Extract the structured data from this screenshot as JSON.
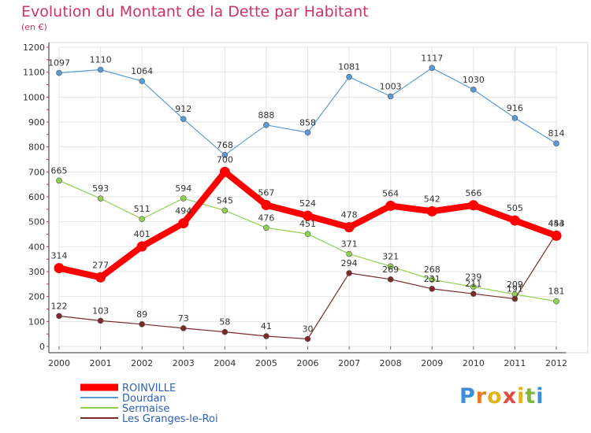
{
  "title": "Evolution du Montant de la Dette par Habitant",
  "subtitle": "(en €)",
  "logo": {
    "letters": [
      "P",
      "r",
      "o",
      "x",
      "i",
      "t",
      "i"
    ],
    "colors": [
      "#3a8fd8",
      "#e97b27",
      "#e2b21c",
      "#e34a3e",
      "#e2b21c",
      "#7fb93a",
      "#3a8fd8"
    ]
  },
  "colors": {
    "title": "#cc3366",
    "grid": "#e4e4e4",
    "axis": "#333333",
    "tick_mark": "#cc3366"
  },
  "chart_data": {
    "type": "line",
    "x": [
      "2000",
      "2001",
      "2002",
      "2003",
      "2004",
      "2005",
      "2006",
      "2007",
      "2008",
      "2009",
      "2010",
      "2011",
      "2012"
    ],
    "ylim": [
      0,
      1200
    ],
    "yticks": [
      "0",
      "100",
      "200",
      "300",
      "400",
      "500",
      "600",
      "700",
      "800",
      "900",
      "1000",
      "1100",
      "1200"
    ],
    "grid": true,
    "legend_position": "bottom-left",
    "series": [
      {
        "name": "ROINVILLE",
        "color": "#ff0000",
        "values": [
          314,
          277,
          401,
          494,
          700,
          567,
          524,
          478,
          564,
          542,
          566,
          505,
          444
        ],
        "labels": [
          "314",
          "277",
          "401",
          "494",
          "700",
          "567",
          "524",
          "478",
          "564",
          "542",
          "566",
          "505",
          "444"
        ]
      },
      {
        "name": "Dourdan",
        "color": "#5b9bd5",
        "values": [
          1097,
          1110,
          1064,
          912,
          768,
          888,
          858,
          1081,
          1003,
          1117,
          1030,
          916,
          814
        ],
        "labels": [
          "1097",
          "1110",
          "1064",
          "912",
          "768",
          "888",
          "858",
          "1081",
          "1003",
          "1117",
          "1030",
          "916",
          "814"
        ]
      },
      {
        "name": "Sermaise",
        "color": "#8fd14f",
        "values": [
          665,
          593,
          511,
          594,
          545,
          476,
          451,
          371,
          321,
          268,
          239,
          209,
          181
        ],
        "labels": [
          "665",
          "593",
          "511",
          "594",
          "545",
          "476",
          "451",
          "371",
          "321",
          "268",
          "239",
          "209",
          "181"
        ]
      },
      {
        "name": "Les Granges-le-Roi",
        "color": "#7b2a2a",
        "values": [
          122,
          103,
          89,
          73,
          58,
          41,
          30,
          294,
          269,
          231,
          211,
          191,
          453
        ],
        "labels": [
          "122",
          "103",
          "89",
          "73",
          "58",
          "41",
          "30",
          "294",
          "269",
          "231",
          "211",
          "191",
          "453"
        ]
      }
    ]
  }
}
